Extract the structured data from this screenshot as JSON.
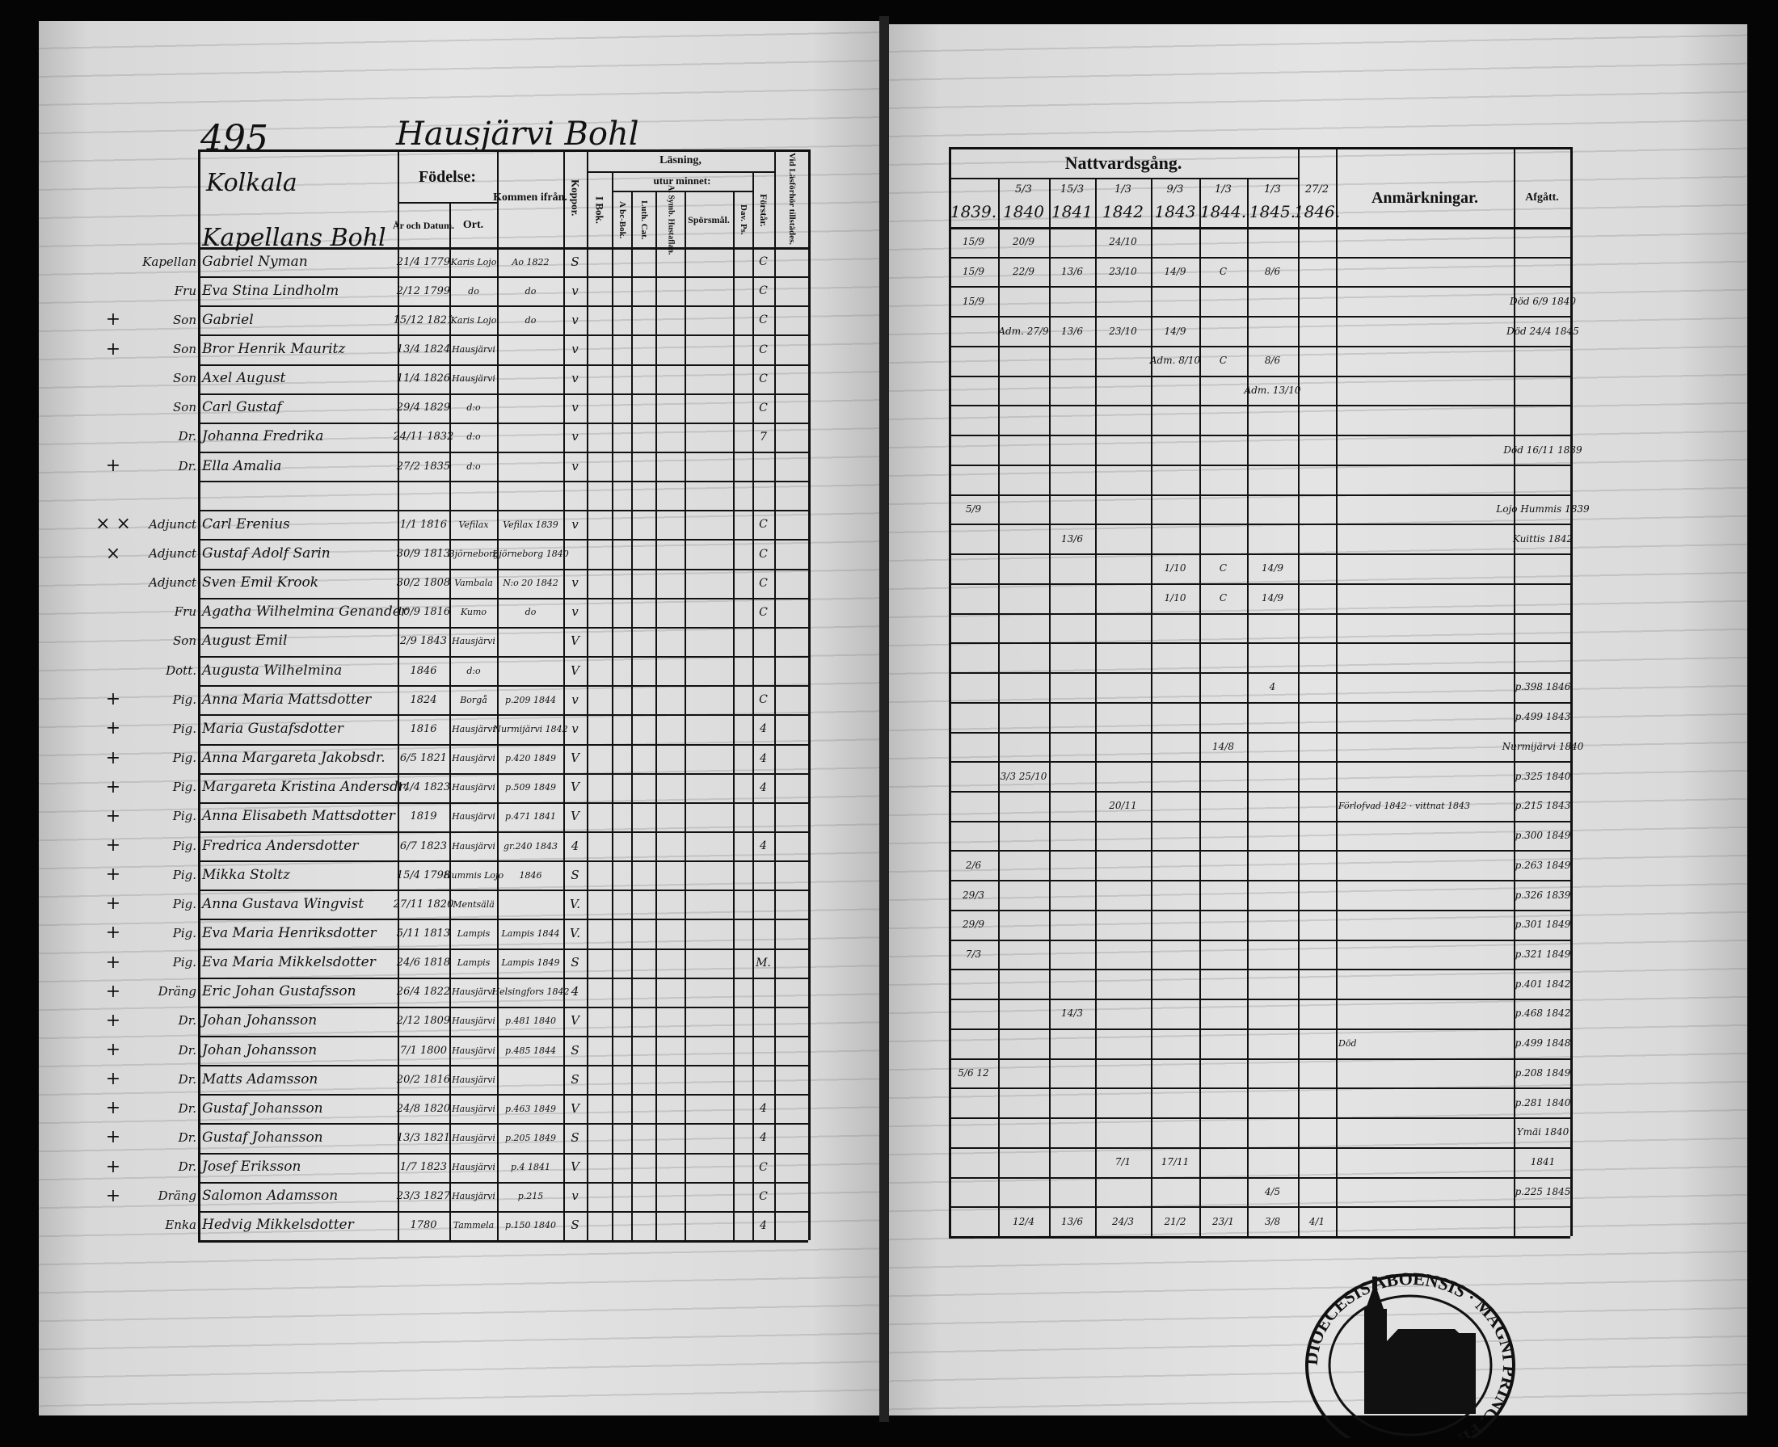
{
  "left_page": {
    "page_number": "495",
    "parish_heading": "Hausjärvi Bohl",
    "village": "Kolkala",
    "section": "Kapellans Bohl",
    "headers": {
      "fodelse": "Födelse:",
      "ar_och_datum": "År och Datum.",
      "ort": "Ort.",
      "kommen_ifran": "Kommen ifrån.",
      "koppor": "Koppor.",
      "lasning": "Läsning,",
      "i_bok": "I Bok.",
      "utur_minnet": "utur minnet:",
      "abc_bok": "A bc-Bok.",
      "luth_cat": "Luth. Cat.",
      "a_symb": "A. Symb. Hustaflan.",
      "sporsmal": "Spörsmål.",
      "dav_ps": "Dav. Ps.",
      "forstar": "Förstår.",
      "vid_lasforhor": "Vid Läsförhör tillstädes."
    },
    "rows": [
      {
        "mark": "",
        "role": "Kapellan",
        "name": "Gabriel Nyman",
        "born": "21/4 1779",
        "place": "Karis Lojo",
        "from": "Ao 1822",
        "koppor": "S",
        "forstar": "C"
      },
      {
        "mark": "",
        "role": "Fru",
        "name": "Eva Stina Lindholm",
        "born": "2/12 1799",
        "place": "do",
        "from": "do",
        "koppor": "v",
        "forstar": "C"
      },
      {
        "mark": "+",
        "role": "Son",
        "name": "Gabriel",
        "born": "15/12 1821",
        "place": "Karis Lojo",
        "from": "do",
        "koppor": "v",
        "forstar": "C"
      },
      {
        "mark": "+",
        "role": "Son",
        "name": "Bror Henrik Mauritz",
        "born": "13/4 1824",
        "place": "Hausjärvi",
        "from": "",
        "koppor": "v",
        "forstar": "C"
      },
      {
        "mark": "",
        "role": "Son",
        "name": "Axel August",
        "born": "11/4 1826",
        "place": "Hausjärvi",
        "from": "",
        "koppor": "v",
        "forstar": "C"
      },
      {
        "mark": "",
        "role": "Son",
        "name": "Carl Gustaf",
        "born": "29/4 1829",
        "place": "d:o",
        "from": "",
        "koppor": "v",
        "forstar": "C"
      },
      {
        "mark": "",
        "role": "Dr.",
        "name": "Johanna Fredrika",
        "born": "24/11 1832",
        "place": "d:o",
        "from": "",
        "koppor": "v",
        "forstar": "7"
      },
      {
        "mark": "+",
        "role": "Dr.",
        "name": "Ella Amalia",
        "born": "27/2 1835",
        "place": "d:o",
        "from": "",
        "koppor": "v",
        "forstar": ""
      },
      {
        "mark": "",
        "role": "",
        "name": "",
        "born": "",
        "place": "",
        "from": "",
        "koppor": "",
        "forstar": ""
      },
      {
        "mark": "× ×",
        "role": "Adjunct",
        "name": "Carl Erenius",
        "born": "1/1 1816",
        "place": "Vefilax",
        "from": "Vefilax 1839",
        "koppor": "v",
        "forstar": "C"
      },
      {
        "mark": "×",
        "role": "Adjunct",
        "name": "Gustaf Adolf Sarin",
        "born": "30/9 1813",
        "place": "Björneborg",
        "from": "Björneborg 1840",
        "koppor": "",
        "forstar": "C"
      },
      {
        "mark": "",
        "role": "Adjunct",
        "name": "Sven Emil Krook",
        "born": "30/2 1808",
        "place": "Vambala",
        "from": "N:o 20 1842",
        "koppor": "v",
        "forstar": "C"
      },
      {
        "mark": "",
        "role": "Fru",
        "name": "Agatha Wilhelmina Genander",
        "born": "10/9 1816",
        "place": "Kumo",
        "from": "do",
        "koppor": "v",
        "forstar": "C"
      },
      {
        "mark": "",
        "role": "Son",
        "name": "August Emil",
        "born": "2/9 1843",
        "place": "Hausjärvi",
        "from": "",
        "koppor": "V",
        "forstar": ""
      },
      {
        "mark": "",
        "role": "Dott.",
        "name": "Augusta Wilhelmina",
        "born": "1846",
        "place": "d:o",
        "from": "",
        "koppor": "V",
        "forstar": ""
      },
      {
        "mark": "+",
        "role": "Pig.",
        "name": "Anna Maria Mattsdotter",
        "born": "1824",
        "place": "Borgå",
        "from": "p.209 1844",
        "koppor": "v",
        "forstar": "C"
      },
      {
        "mark": "+",
        "role": "Pig.",
        "name": "Maria Gustafsdotter",
        "born": "1816",
        "place": "Hausjärvi",
        "from": "Nurmijärvi 1842",
        "koppor": "v",
        "forstar": "4"
      },
      {
        "mark": "+",
        "role": "Pig.",
        "name": "Anna Margareta Jakobsdr.",
        "born": "6/5 1821",
        "place": "Hausjärvi",
        "from": "p.420 1849",
        "koppor": "V",
        "forstar": "4"
      },
      {
        "mark": "+",
        "role": "Pig.",
        "name": "Margareta Kristina Andersdr.",
        "born": "14/4 1823",
        "place": "Hausjärvi",
        "from": "p.509 1849",
        "koppor": "V",
        "forstar": "4"
      },
      {
        "mark": "+",
        "role": "Pig.",
        "name": "Anna Elisabeth Mattsdotter",
        "born": "1819",
        "place": "Hausjärvi",
        "from": "p.471 1841",
        "koppor": "V",
        "forstar": ""
      },
      {
        "mark": "+",
        "role": "Pig.",
        "name": "Fredrica Andersdotter",
        "born": "6/7 1823",
        "place": "Hausjärvi",
        "from": "gr.240 1843",
        "koppor": "4",
        "forstar": "4"
      },
      {
        "mark": "+",
        "role": "Pig.",
        "name": "Mikka Stoltz",
        "born": "15/4 1798",
        "place": "Hummis Lojo",
        "from": "1846",
        "koppor": "S",
        "forstar": ""
      },
      {
        "mark": "+",
        "role": "Pig.",
        "name": "Anna Gustava Wingvist",
        "born": "27/11 1820",
        "place": "Mentsälä",
        "from": "",
        "koppor": "V.",
        "forstar": ""
      },
      {
        "mark": "+",
        "role": "Pig.",
        "name": "Eva Maria Henriksdotter",
        "born": "5/11 1813",
        "place": "Lampis",
        "from": "Lampis 1844",
        "koppor": "V.",
        "forstar": ""
      },
      {
        "mark": "+",
        "role": "Pig.",
        "name": "Eva Maria Mikkelsdotter",
        "born": "24/6 1818",
        "place": "Lampis",
        "from": "Lampis 1849",
        "koppor": "S",
        "forstar": "M."
      },
      {
        "mark": "+",
        "role": "Dräng",
        "name": "Eric Johan Gustafsson",
        "born": "26/4 1822",
        "place": "Hausjärvi",
        "from": "Helsingfors 1842",
        "koppor": "4",
        "forstar": ""
      },
      {
        "mark": "+",
        "role": "Dr.",
        "name": "Johan Johansson",
        "born": "2/12 1809",
        "place": "Hausjärvi",
        "from": "p.481 1840",
        "koppor": "V",
        "forstar": ""
      },
      {
        "mark": "+",
        "role": "Dr.",
        "name": "Johan Johansson",
        "born": "7/1 1800",
        "place": "Hausjärvi",
        "from": "p.485 1844",
        "koppor": "S",
        "forstar": ""
      },
      {
        "mark": "+",
        "role": "Dr.",
        "name": "Matts Adamsson",
        "born": "20/2 1816",
        "place": "Hausjärvi",
        "from": "",
        "koppor": "S",
        "forstar": ""
      },
      {
        "mark": "+",
        "role": "Dr.",
        "name": "Gustaf Johansson",
        "born": "24/8 1820",
        "place": "Hausjärvi",
        "from": "p.463 1849",
        "koppor": "V",
        "forstar": "4"
      },
      {
        "mark": "+",
        "role": "Dr.",
        "name": "Gustaf Johansson",
        "born": "13/3 1821",
        "place": "Hausjärvi",
        "from": "p.205 1849",
        "koppor": "S",
        "forstar": "4"
      },
      {
        "mark": "+",
        "role": "Dr.",
        "name": "Josef Eriksson",
        "born": "1/7 1823",
        "place": "Hausjärvi",
        "from": "p.4 1841",
        "koppor": "V",
        "forstar": "C"
      },
      {
        "mark": "+",
        "role": "Dräng",
        "name": "Salomon Adamsson",
        "born": "23/3 1827",
        "place": "Hausjärvi",
        "from": "p.215",
        "koppor": "v",
        "forstar": "C"
      },
      {
        "mark": "",
        "role": "Enka",
        "name": "Hedvig Mikkelsdotter",
        "born": "1780",
        "place": "Tammela",
        "from": "p.150 1840",
        "koppor": "S",
        "forstar": "4"
      }
    ]
  },
  "right_page": {
    "headers": {
      "nattvardsgang": "Nattvardsgång.",
      "anmarkningar": "Anmärkningar.",
      "afgatt": "Afgått."
    },
    "years": [
      {
        "date": "",
        "year": "1839."
      },
      {
        "date": "5/3",
        "year": "1840"
      },
      {
        "date": "15/3",
        "year": "1841"
      },
      {
        "date": "1/3",
        "year": "1842"
      },
      {
        "date": "9/3",
        "year": "1843"
      },
      {
        "date": "1/3",
        "year": "1844."
      },
      {
        "date": "1/3",
        "year": "1845."
      },
      {
        "date": "27/2",
        "year": "1846."
      }
    ],
    "rows": [
      {
        "c": [
          "15/9",
          "20/9",
          "",
          "24/10",
          "",
          "",
          "",
          ""
        ],
        "note": "",
        "afgatt": ""
      },
      {
        "c": [
          "15/9",
          "22/9",
          "13/6",
          "23/10",
          "14/9",
          "C",
          "8/6",
          ""
        ],
        "note": "",
        "afgatt": ""
      },
      {
        "c": [
          "15/9",
          "",
          "",
          "",
          "",
          "",
          "",
          ""
        ],
        "note": "",
        "afgatt": "Död 6/9 1840"
      },
      {
        "c": [
          "",
          "Adm. 27/9",
          "13/6",
          "23/10",
          "14/9",
          "",
          "",
          ""
        ],
        "note": "",
        "afgatt": "Död 24/4 1845"
      },
      {
        "c": [
          "",
          "",
          "",
          "",
          "Adm. 8/10",
          "C",
          "8/6",
          ""
        ],
        "note": "",
        "afgatt": ""
      },
      {
        "c": [
          "",
          "",
          "",
          "",
          "",
          "",
          "Adm. 13/10",
          ""
        ],
        "note": "",
        "afgatt": ""
      },
      {
        "c": [
          "",
          "",
          "",
          "",
          "",
          "",
          "",
          ""
        ],
        "note": "",
        "afgatt": ""
      },
      {
        "c": [
          "",
          "",
          "",
          "",
          "",
          "",
          "",
          ""
        ],
        "note": "",
        "afgatt": "Död 16/11 1839"
      },
      {
        "c": [
          "",
          "",
          "",
          "",
          "",
          "",
          "",
          ""
        ],
        "note": "",
        "afgatt": ""
      },
      {
        "c": [
          "5/9",
          "",
          "",
          "",
          "",
          "",
          "",
          ""
        ],
        "note": "",
        "afgatt": "Lojo Hummis 1839"
      },
      {
        "c": [
          "",
          "",
          "13/6",
          "",
          "",
          "",
          "",
          ""
        ],
        "note": "",
        "afgatt": "Kuittis 1842"
      },
      {
        "c": [
          "",
          "",
          "",
          "",
          "1/10",
          "C",
          "14/9",
          ""
        ],
        "note": "",
        "afgatt": ""
      },
      {
        "c": [
          "",
          "",
          "",
          "",
          "1/10",
          "C",
          "14/9",
          ""
        ],
        "note": "",
        "afgatt": ""
      },
      {
        "c": [
          "",
          "",
          "",
          "",
          "",
          "",
          "",
          ""
        ],
        "note": "",
        "afgatt": ""
      },
      {
        "c": [
          "",
          "",
          "",
          "",
          "",
          "",
          "",
          ""
        ],
        "note": "",
        "afgatt": ""
      },
      {
        "c": [
          "",
          "",
          "",
          "",
          "",
          "",
          "4",
          ""
        ],
        "note": "",
        "afgatt": "p.398 1846"
      },
      {
        "c": [
          "",
          "",
          "",
          "",
          "",
          "",
          "",
          ""
        ],
        "note": "",
        "afgatt": "p.499 1843"
      },
      {
        "c": [
          "",
          "",
          "",
          "",
          "",
          "14/8",
          "",
          ""
        ],
        "note": "",
        "afgatt": "Nurmijärvi 1840"
      },
      {
        "c": [
          "",
          "3/3 25/10",
          "",
          "",
          "",
          "",
          "",
          ""
        ],
        "note": "",
        "afgatt": "p.325 1840"
      },
      {
        "c": [
          "",
          "",
          "",
          "20/11",
          "",
          "",
          "",
          ""
        ],
        "note": "Förlofvad 1842 · vittnat 1843",
        "afgatt": "p.215 1843"
      },
      {
        "c": [
          "",
          "",
          "",
          "",
          "",
          "",
          "",
          ""
        ],
        "note": "",
        "afgatt": "p.300 1849"
      },
      {
        "c": [
          "2/6",
          "",
          "",
          "",
          "",
          "",
          "",
          ""
        ],
        "note": "",
        "afgatt": "p.263 1849"
      },
      {
        "c": [
          "29/3",
          "",
          "",
          "",
          "",
          "",
          "",
          ""
        ],
        "note": "",
        "afgatt": "p.326 1839"
      },
      {
        "c": [
          "29/9",
          "",
          "",
          "",
          "",
          "",
          "",
          ""
        ],
        "note": "",
        "afgatt": "p.301 1849"
      },
      {
        "c": [
          "7/3",
          "",
          "",
          "",
          "",
          "",
          "",
          ""
        ],
        "note": "",
        "afgatt": "p.321 1849"
      },
      {
        "c": [
          "",
          "",
          "",
          "",
          "",
          "",
          "",
          ""
        ],
        "note": "",
        "afgatt": "p.401 1842"
      },
      {
        "c": [
          "",
          "",
          "14/3",
          "",
          "",
          "",
          "",
          ""
        ],
        "note": "",
        "afgatt": "p.468 1842"
      },
      {
        "c": [
          "",
          "",
          "",
          "",
          "",
          "",
          "",
          ""
        ],
        "note": "Död",
        "afgatt": "p.499 1848"
      },
      {
        "c": [
          "5/6 12",
          "",
          "",
          "",
          "",
          "",
          "",
          ""
        ],
        "note": "",
        "afgatt": "p.208 1849"
      },
      {
        "c": [
          "",
          "",
          "",
          "",
          "",
          "",
          "",
          ""
        ],
        "note": "",
        "afgatt": "p.281 1840"
      },
      {
        "c": [
          "",
          "",
          "",
          "",
          "",
          "",
          "",
          ""
        ],
        "note": "",
        "afgatt": "Ymäi 1840"
      },
      {
        "c": [
          "",
          "",
          "",
          "7/1",
          "17/11",
          "",
          "",
          ""
        ],
        "note": "",
        "afgatt": "1841"
      },
      {
        "c": [
          "",
          "",
          "",
          "",
          "",
          "",
          "4/5",
          ""
        ],
        "note": "",
        "afgatt": "p.225 1845"
      },
      {
        "c": [
          "",
          "12/4",
          "13/6",
          "24/3",
          "21/2",
          "23/1",
          "3/8",
          "4/1"
        ],
        "note": "",
        "afgatt": ""
      }
    ]
  },
  "stamp": {
    "text": "DIOECESIS ABOENSIS · MAGNI PRINC. FINL."
  }
}
